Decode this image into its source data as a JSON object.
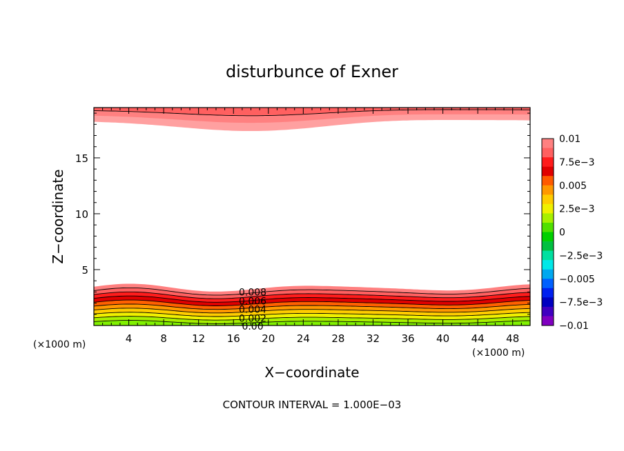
{
  "chart_data": {
    "type": "contour",
    "title": "disturbunce of Exner",
    "xlabel": "X−coordinate",
    "ylabel": "Z−coordinate",
    "x_unit_left": "(×1000 m)",
    "x_unit_right": "(×1000 m)",
    "xlim": [
      0,
      50
    ],
    "ylim": [
      0,
      19.5
    ],
    "x_ticks": [
      4,
      8,
      12,
      16,
      20,
      24,
      28,
      32,
      36,
      40,
      44,
      48
    ],
    "x_tick_labels": [
      "4",
      "8",
      "12",
      "16",
      "20",
      "24",
      "28",
      "32",
      "36",
      "40",
      "44",
      "48"
    ],
    "y_ticks": [
      5,
      10,
      15
    ],
    "y_tick_labels": [
      "5",
      "10",
      "15"
    ],
    "contour_labels": [
      "0.008",
      "0.006",
      "0.004",
      "0.002",
      "0.00"
    ],
    "contour_label_values": [
      0.008,
      0.006,
      0.004,
      0.002,
      0.0
    ],
    "contour_interval_text": "CONTOUR INTERVAL = 1.000E−03",
    "colorbar": {
      "labels": [
        "0.01",
        "7.5e−3",
        "0.005",
        "2.5e−3",
        "0",
        "−2.5e−3",
        "−0.005",
        "−7.5e−3",
        "−0.01"
      ],
      "label_values": [
        0.01,
        0.0075,
        0.005,
        0.0025,
        0,
        -0.0025,
        -0.005,
        -0.0075,
        -0.01
      ],
      "range": [
        -0.01,
        0.01
      ],
      "colors_top_to_bottom": [
        "#ff8080",
        "#ff6060",
        "#ff1c1c",
        "#e00000",
        "#ff5a00",
        "#ff9800",
        "#ffcc00",
        "#f0f000",
        "#a8f000",
        "#50e000",
        "#00d000",
        "#00c040",
        "#00e0a0",
        "#00e8e8",
        "#00a8f0",
        "#0060ff",
        "#0020f0",
        "#0000c0",
        "#4000c0",
        "#8000c0"
      ]
    },
    "bottom_band_colors": [
      "#80f000",
      "#a8f000",
      "#f0f000",
      "#ffcc00",
      "#ff9800",
      "#ff6000",
      "#e00000",
      "#ff1c1c",
      "#ff6060",
      "#ff8080"
    ],
    "top_band_colors": [
      "#ff6060",
      "#ff8080",
      "#ffa0a0"
    ]
  }
}
